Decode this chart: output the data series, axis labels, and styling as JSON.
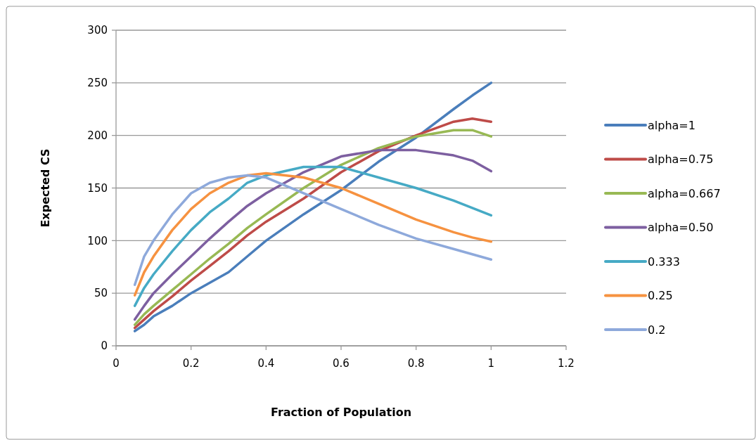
{
  "chart_data": {
    "type": "line",
    "xlabel": "Fraction of Population",
    "ylabel": "Expected CS",
    "x": [
      0.05,
      0.075,
      0.1,
      0.15,
      0.2,
      0.25,
      0.3,
      0.35,
      0.4,
      0.5,
      0.6,
      0.7,
      0.8,
      0.9,
      0.95,
      1
    ],
    "series": [
      {
        "name": "alpha=1",
        "color": "#4a7ebb",
        "values": [
          14,
          20,
          28,
          38,
          50,
          60,
          70,
          85,
          100,
          125,
          148,
          175,
          198,
          225,
          238,
          250
        ]
      },
      {
        "name": "alpha=0.75",
        "color": "#be4b48",
        "values": [
          17,
          25,
          33,
          47,
          62,
          76,
          90,
          105,
          118,
          140,
          165,
          185,
          200,
          213,
          216,
          213
        ]
      },
      {
        "name": "alpha=0.667",
        "color": "#98b954",
        "values": [
          20,
          30,
          38,
          53,
          68,
          83,
          97,
          112,
          125,
          150,
          172,
          188,
          199,
          205,
          205,
          199
        ]
      },
      {
        "name": "alpha=0.50",
        "color": "#7d5fa0",
        "values": [
          25,
          38,
          50,
          68,
          85,
          102,
          118,
          133,
          145,
          165,
          180,
          186,
          186,
          181,
          176,
          166
        ]
      },
      {
        "name": "0.333",
        "color": "#46aac5",
        "values": [
          38,
          55,
          68,
          90,
          110,
          127,
          140,
          155,
          162,
          170,
          170,
          160,
          150,
          138,
          131,
          124
        ]
      },
      {
        "name": "0.25",
        "color": "#f69240",
        "values": [
          48,
          70,
          85,
          110,
          130,
          145,
          155,
          162,
          164,
          160,
          150,
          135,
          120,
          108,
          103,
          99
        ]
      },
      {
        "name": "0.2",
        "color": "#8ea9db",
        "values": [
          58,
          85,
          100,
          125,
          145,
          155,
          160,
          162,
          160,
          145,
          130,
          115,
          102,
          92,
          87,
          82
        ]
      }
    ],
    "xlim": [
      0,
      1.2
    ],
    "xticks": [
      0,
      0.2,
      0.4,
      0.6,
      0.8,
      1,
      1.2
    ],
    "ylim": [
      0,
      300
    ],
    "yticks": [
      0,
      50,
      100,
      150,
      200,
      250,
      300
    ],
    "grid": "y",
    "legend": "right",
    "marker": "none",
    "line_style": "solid"
  }
}
